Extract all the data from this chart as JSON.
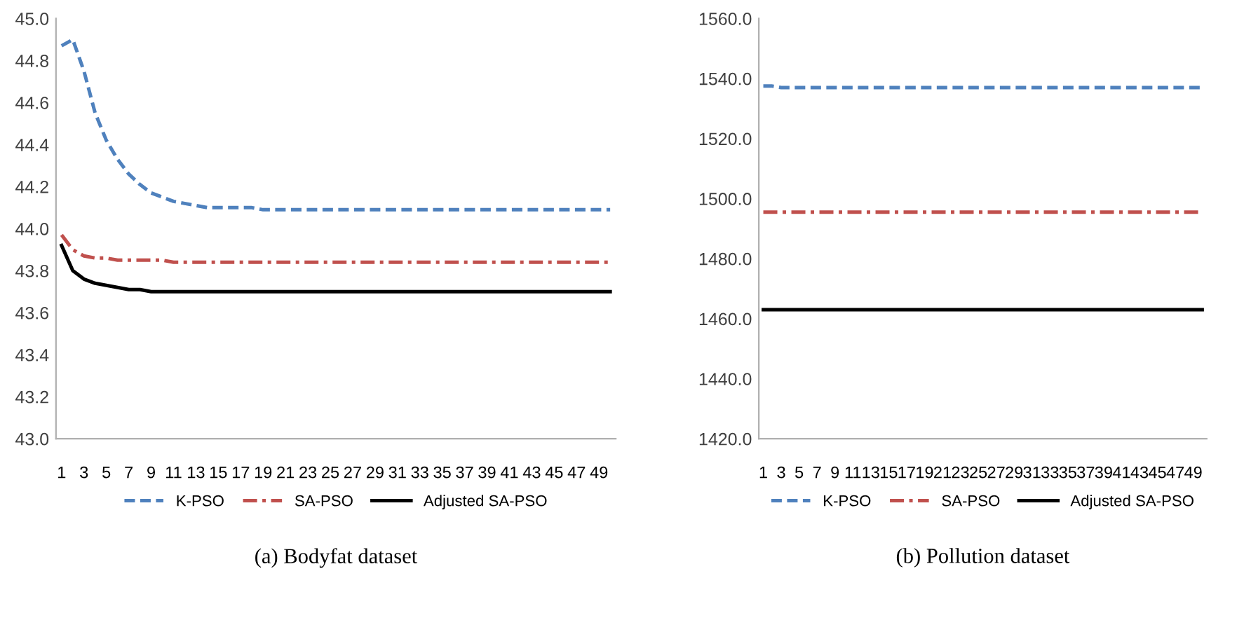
{
  "chart_data": [
    {
      "type": "line",
      "title": "(a) Bodyfat dataset",
      "categories": [
        "1",
        null,
        "3",
        null,
        "5",
        null,
        "7",
        null,
        "9",
        null,
        "11",
        null,
        "13",
        null,
        "15",
        null,
        "17",
        null,
        "19",
        null,
        "21",
        null,
        "23",
        null,
        "25",
        null,
        "27",
        null,
        "29",
        null,
        "31",
        null,
        "33",
        null,
        "35",
        null,
        "37",
        null,
        "39",
        null,
        "41",
        null,
        "43",
        null,
        "45",
        null,
        "47",
        null,
        "49",
        null
      ],
      "ylim": [
        43.0,
        45.0
      ],
      "yticks": [
        {
          "value": 43.0,
          "label": "43.0"
        },
        {
          "value": 43.2,
          "label": "43.2"
        },
        {
          "value": 43.4,
          "label": "43.4"
        },
        {
          "value": 43.6,
          "label": "43.6"
        },
        {
          "value": 43.8,
          "label": "43.8"
        },
        {
          "value": 44.0,
          "label": "44.0"
        },
        {
          "value": 44.2,
          "label": "44.2"
        },
        {
          "value": 44.4,
          "label": "44.4"
        },
        {
          "value": 44.6,
          "label": "44.6"
        },
        {
          "value": 44.8,
          "label": "44.8"
        },
        {
          "value": 45.0,
          "label": "45.0"
        }
      ],
      "grid": false,
      "legend": "bottom",
      "series": [
        {
          "name": "K-PSO",
          "color": "#4f81bd",
          "line_style": "dashed",
          "values": [
            44.87,
            44.9,
            44.75,
            44.55,
            44.42,
            44.33,
            44.26,
            44.21,
            44.17,
            44.15,
            44.13,
            44.12,
            44.11,
            44.1,
            44.1,
            44.1,
            44.1,
            44.1,
            44.09,
            44.09,
            44.09,
            44.09,
            44.09,
            44.09,
            44.09,
            44.09,
            44.09,
            44.09,
            44.09,
            44.09,
            44.09,
            44.09,
            44.09,
            44.09,
            44.09,
            44.09,
            44.09,
            44.09,
            44.09,
            44.09,
            44.09,
            44.09,
            44.09,
            44.09,
            44.09,
            44.09,
            44.09,
            44.09,
            44.09,
            44.09
          ]
        },
        {
          "name": "SA-PSO",
          "color": "#c0504d",
          "line_style": "dashdot",
          "values": [
            43.97,
            43.9,
            43.87,
            43.86,
            43.86,
            43.85,
            43.85,
            43.85,
            43.85,
            43.85,
            43.84,
            43.84,
            43.84,
            43.84,
            43.84,
            43.84,
            43.84,
            43.84,
            43.84,
            43.84,
            43.84,
            43.84,
            43.84,
            43.84,
            43.84,
            43.84,
            43.84,
            43.84,
            43.84,
            43.84,
            43.84,
            43.84,
            43.84,
            43.84,
            43.84,
            43.84,
            43.84,
            43.84,
            43.84,
            43.84,
            43.84,
            43.84,
            43.84,
            43.84,
            43.84,
            43.84,
            43.84,
            43.84,
            43.84,
            43.84
          ]
        },
        {
          "name": "Adjusted SA-PSO",
          "color": "#000000",
          "line_style": "solid",
          "values": [
            43.92,
            43.8,
            43.76,
            43.74,
            43.73,
            43.72,
            43.71,
            43.71,
            43.7,
            43.7,
            43.7,
            43.7,
            43.7,
            43.7,
            43.7,
            43.7,
            43.7,
            43.7,
            43.7,
            43.7,
            43.7,
            43.7,
            43.7,
            43.7,
            43.7,
            43.7,
            43.7,
            43.7,
            43.7,
            43.7,
            43.7,
            43.7,
            43.7,
            43.7,
            43.7,
            43.7,
            43.7,
            43.7,
            43.7,
            43.7,
            43.7,
            43.7,
            43.7,
            43.7,
            43.7,
            43.7,
            43.7,
            43.7,
            43.7,
            43.7
          ]
        }
      ]
    },
    {
      "type": "line",
      "title": "(b) Pollution dataset",
      "categories": [
        "1",
        null,
        "3",
        null,
        "5",
        null,
        "7",
        null,
        "9",
        null,
        "11",
        null,
        "13",
        null,
        "15",
        null,
        "17",
        null,
        "19",
        null,
        "21",
        null,
        "23",
        null,
        "25",
        null,
        "27",
        null,
        "29",
        null,
        "31",
        null,
        "33",
        null,
        "35",
        null,
        "37",
        null,
        "39",
        null,
        "41",
        null,
        "43",
        null,
        "45",
        null,
        "47",
        null,
        "49",
        null
      ],
      "ylim": [
        1420,
        1560
      ],
      "yticks": [
        {
          "value": 1420,
          "label": "1420.0"
        },
        {
          "value": 1440,
          "label": "1440.0"
        },
        {
          "value": 1460,
          "label": "1460.0"
        },
        {
          "value": 1480,
          "label": "1480.0"
        },
        {
          "value": 1500,
          "label": "1500.0"
        },
        {
          "value": 1520,
          "label": "1520.0"
        },
        {
          "value": 1540,
          "label": "1540.0"
        },
        {
          "value": 1560,
          "label": "1560.0"
        }
      ],
      "grid": false,
      "legend": "bottom",
      "series": [
        {
          "name": "K-PSO",
          "color": "#4f81bd",
          "line_style": "dashed",
          "values": [
            1537.5,
            1537.5,
            1537,
            1537,
            1537,
            1537,
            1537,
            1537,
            1537,
            1537,
            1537,
            1537,
            1537,
            1537,
            1537,
            1537,
            1537,
            1537,
            1537,
            1537,
            1537,
            1537,
            1537,
            1537,
            1537,
            1537,
            1537,
            1537,
            1537,
            1537,
            1537,
            1537,
            1537,
            1537,
            1537,
            1537,
            1537,
            1537,
            1537,
            1537,
            1537,
            1537,
            1537,
            1537,
            1537,
            1537,
            1537,
            1537,
            1537,
            1537
          ]
        },
        {
          "name": "SA-PSO",
          "color": "#c0504d",
          "line_style": "dashdot",
          "values": [
            1495.5,
            1495.5,
            1495.5,
            1495.5,
            1495.5,
            1495.5,
            1495.5,
            1495.5,
            1495.5,
            1495.5,
            1495.5,
            1495.5,
            1495.5,
            1495.5,
            1495.5,
            1495.5,
            1495.5,
            1495.5,
            1495.5,
            1495.5,
            1495.5,
            1495.5,
            1495.5,
            1495.5,
            1495.5,
            1495.5,
            1495.5,
            1495.5,
            1495.5,
            1495.5,
            1495.5,
            1495.5,
            1495.5,
            1495.5,
            1495.5,
            1495.5,
            1495.5,
            1495.5,
            1495.5,
            1495.5,
            1495.5,
            1495.5,
            1495.5,
            1495.5,
            1495.5,
            1495.5,
            1495.5,
            1495.5,
            1495.5,
            1495.5
          ]
        },
        {
          "name": "Adjusted SA-PSO",
          "color": "#000000",
          "line_style": "solid",
          "values": [
            1463,
            1463,
            1463,
            1463,
            1463,
            1463,
            1463,
            1463,
            1463,
            1463,
            1463,
            1463,
            1463,
            1463,
            1463,
            1463,
            1463,
            1463,
            1463,
            1463,
            1463,
            1463,
            1463,
            1463,
            1463,
            1463,
            1463,
            1463,
            1463,
            1463,
            1463,
            1463,
            1463,
            1463,
            1463,
            1463,
            1463,
            1463,
            1463,
            1463,
            1463,
            1463,
            1463,
            1463,
            1463,
            1463,
            1463,
            1463,
            1463,
            1463
          ]
        }
      ]
    }
  ]
}
